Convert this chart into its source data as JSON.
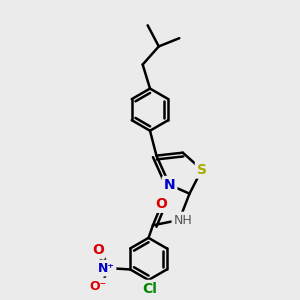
{
  "background_color": "#ebebeb",
  "bond_color": "#000000",
  "bond_width": 1.8,
  "atom_labels": {
    "S": {
      "color": "#aaaa00",
      "fontsize": 10,
      "fontweight": "bold"
    },
    "N": {
      "color": "#0000cc",
      "fontsize": 10,
      "fontweight": "bold"
    },
    "O": {
      "color": "#dd0000",
      "fontsize": 10,
      "fontweight": "bold"
    },
    "Cl": {
      "color": "#008800",
      "fontsize": 10,
      "fontweight": "bold"
    },
    "NH": {
      "color": "#555555",
      "fontsize": 9,
      "fontweight": "normal"
    }
  },
  "figsize": [
    3.0,
    3.0
  ],
  "dpi": 100
}
